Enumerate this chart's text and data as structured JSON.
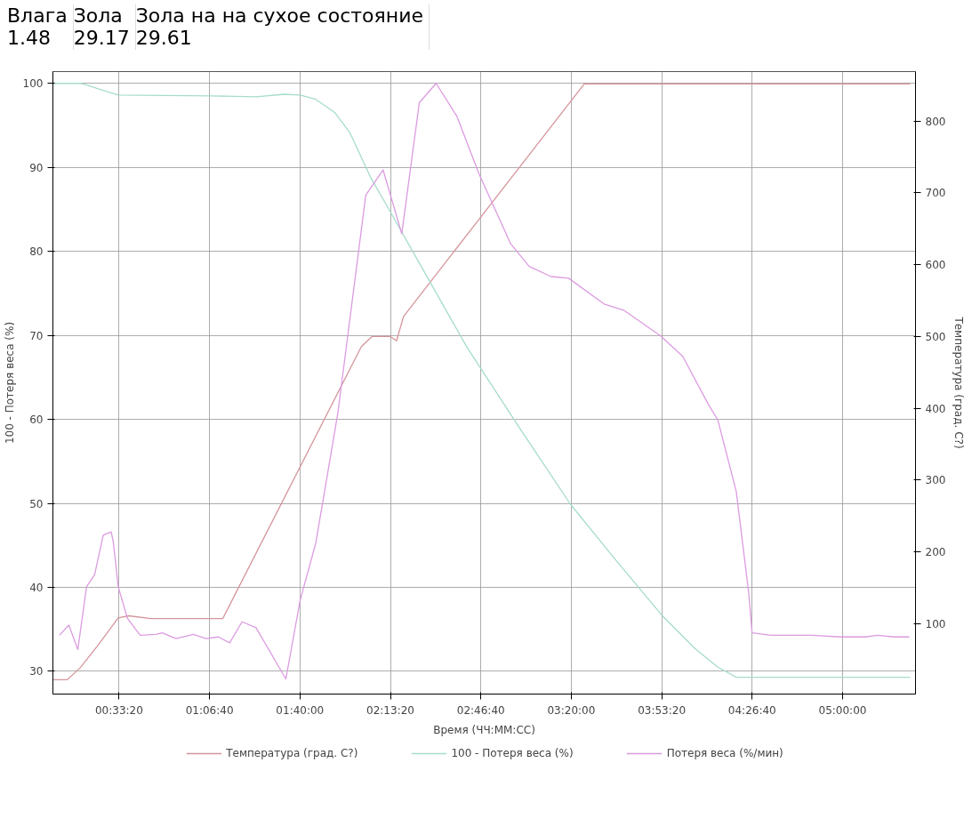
{
  "chart_data": {
    "type": "line",
    "annotations": [
      "Влага",
      "Зола",
      "Зола на на сухое состояние",
      "1.48",
      "29.17",
      "29.61"
    ],
    "xlabel": "Время (ЧЧ:ММ:СС)",
    "ylabel": "100 - Потеря веса (%)",
    "y2label": "Температура (град. C?)",
    "xlim": [
      0.149,
      5.448
    ],
    "ylim": [
      27.3,
      101.4
    ],
    "y2lim": [
      2,
      869
    ],
    "xticks": [
      {
        "value": 0.5556,
        "label": "00:33:20"
      },
      {
        "value": 1.1111,
        "label": "01:06:40"
      },
      {
        "value": 1.6667,
        "label": "01:40:00"
      },
      {
        "value": 2.2222,
        "label": "02:13:20"
      },
      {
        "value": 2.7778,
        "label": "02:46:40"
      },
      {
        "value": 3.3333,
        "label": "03:20:00"
      },
      {
        "value": 3.8889,
        "label": "03:53:20"
      },
      {
        "value": 4.4444,
        "label": "04:26:40"
      },
      {
        "value": 5.0,
        "label": "05:00:00"
      }
    ],
    "yticks": [
      30,
      40,
      50,
      60,
      70,
      80,
      90,
      100
    ],
    "y2ticks": [
      100,
      200,
      300,
      400,
      500,
      600,
      700,
      800
    ],
    "grid": true,
    "legend": "bottom",
    "marker": "none",
    "line_style": "solid",
    "series": [
      {
        "name": "Температура (град. C?)",
        "color": "#d4959b",
        "axis": "y2",
        "x": [
          0.149,
          0.237,
          0.318,
          0.426,
          0.55,
          0.615,
          0.75,
          1.192,
          2.044,
          2.109,
          2.222,
          2.26,
          2.303,
          3.414,
          5.415
        ],
        "values": [
          22,
          22,
          39,
          70,
          108,
          111,
          107,
          107,
          486,
          500,
          500,
          494,
          528,
          852,
          852
        ]
      },
      {
        "name": "100 - Потеря веса (%)",
        "color": "#a6dccb",
        "x": [
          0.149,
          0.318,
          0.357,
          0.453,
          0.55,
          1.127,
          1.397,
          1.57,
          1.667,
          1.764,
          1.882,
          1.974,
          2.098,
          2.222,
          2.4,
          2.692,
          3.015,
          3.328,
          3.609,
          3.889,
          4.094,
          4.234,
          4.347,
          5.415
        ],
        "values": [
          100,
          100,
          99.8,
          99.2,
          98.6,
          98.5,
          98.4,
          98.7,
          98.6,
          98.1,
          96.5,
          94.1,
          88.9,
          84.7,
          78.6,
          68.6,
          59.0,
          49.9,
          43.2,
          36.7,
          32.7,
          30.5,
          29.3,
          29.3
        ]
      },
      {
        "name": "Потеря веса (%/мин)",
        "color": "#dc9be0",
        "x": [
          0.189,
          0.247,
          0.302,
          0.356,
          0.405,
          0.458,
          0.507,
          0.52,
          0.55,
          0.607,
          0.685,
          0.782,
          0.82,
          0.906,
          1.012,
          1.09,
          1.165,
          1.235,
          1.311,
          1.397,
          1.58,
          1.667,
          1.764,
          1.899,
          2.071,
          2.177,
          2.292,
          2.4,
          2.503,
          2.63,
          2.767,
          2.961,
          3.075,
          3.209,
          3.317,
          3.538,
          3.655,
          3.884,
          4.018,
          4.175,
          4.234,
          4.347,
          4.423,
          4.444,
          4.558,
          4.811,
          4.984,
          5.14,
          5.216,
          5.313,
          5.41
        ],
        "values": [
          34.3,
          35.5,
          32.6,
          40.1,
          41.5,
          46.2,
          46.6,
          45.4,
          40.1,
          36.3,
          34.3,
          34.4,
          34.6,
          33.9,
          34.4,
          33.9,
          34.1,
          33.4,
          35.9,
          35.2,
          29.1,
          38.4,
          45.3,
          60.7,
          86.7,
          89.7,
          82.1,
          97.7,
          100,
          96.1,
          89.2,
          80.9,
          78.2,
          77.0,
          76.8,
          73.7,
          73.0,
          69.9,
          67.5,
          61.8,
          59.9,
          51.4,
          39.4,
          34.6,
          34.3,
          34.3,
          34.1,
          34.1,
          34.3,
          34.1,
          34.1
        ]
      }
    ]
  }
}
